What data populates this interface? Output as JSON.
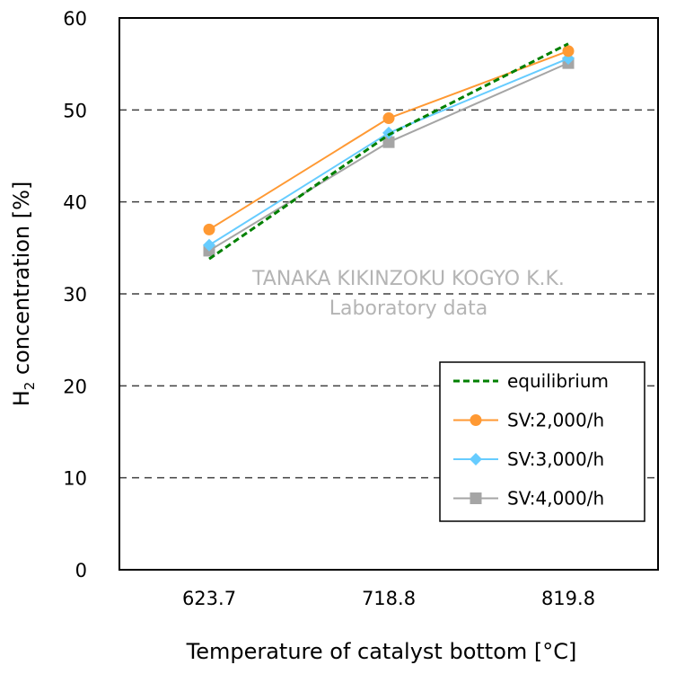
{
  "chart_data": {
    "type": "line",
    "categories": [
      "623.7",
      "718.8",
      "819.8"
    ],
    "xlabel": "Temperature of catalyst bottom [°C]",
    "ylabel_main": "H",
    "ylabel_sub": "2",
    "ylabel_rest": " concentration [%]",
    "ylim": [
      0,
      60
    ],
    "yticks": [
      0,
      10,
      20,
      30,
      40,
      50,
      60
    ],
    "grid": "horizontal dashed",
    "legend_position": "bottom-right",
    "watermark": [
      "TANAKA KIKINZOKU KOGYO K.K.",
      "Laboratory data"
    ],
    "series": [
      {
        "name": "equilibrium",
        "values": [
          33.8,
          47.3,
          57.2
        ],
        "color": "#008000",
        "style": "dashed",
        "marker": "none"
      },
      {
        "name": "SV:2,000/h",
        "values": [
          37.0,
          49.1,
          56.4
        ],
        "color": "#FF9933",
        "style": "solid",
        "marker": "circle"
      },
      {
        "name": "SV:3,000/h",
        "values": [
          35.3,
          47.5,
          55.6
        ],
        "color": "#66CCFF",
        "style": "solid",
        "marker": "diamond"
      },
      {
        "name": "SV:4,000/h",
        "values": [
          34.7,
          46.5,
          55.1
        ],
        "color": "#A5A5A5",
        "style": "solid",
        "marker": "square"
      }
    ]
  }
}
